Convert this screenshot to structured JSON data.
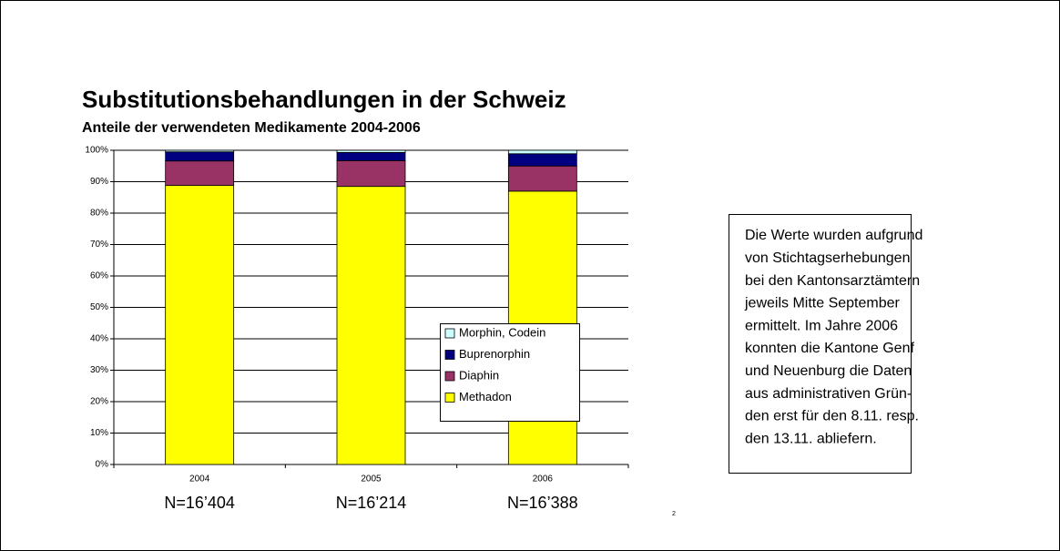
{
  "chart_data": {
    "type": "stacked_bar",
    "title": "Substitutionsbehandlungen in der Schweiz",
    "subtitle": "Anteile der verwendeten Medikamente 2004-2006",
    "categories": [
      "2004",
      "2005",
      "2006"
    ],
    "category_notes": [
      "N=16’404",
      "N=16’214",
      "N=16’388"
    ],
    "series": [
      {
        "name": "Methadon",
        "color": "#ffff00",
        "values": [
          88.8,
          88.5,
          87.0
        ]
      },
      {
        "name": "Diaphin",
        "color": "#993366",
        "values": [
          7.8,
          8.2,
          8.0
        ]
      },
      {
        "name": "Buprenorphin",
        "color": "#000080",
        "values": [
          2.9,
          2.6,
          3.9
        ]
      },
      {
        "name": "Morphin, Codein",
        "color": "#ccffff",
        "values": [
          0.5,
          0.7,
          1.1
        ]
      }
    ],
    "ylim": [
      0,
      100
    ],
    "yticks": [
      {
        "value": 0,
        "label": "0%"
      },
      {
        "value": 10,
        "label": "10%"
      },
      {
        "value": 20,
        "label": "20%"
      },
      {
        "value": 30,
        "label": "30%"
      },
      {
        "value": 40,
        "label": "40%"
      },
      {
        "value": 50,
        "label": "50%"
      },
      {
        "value": 60,
        "label": "60%"
      },
      {
        "value": 70,
        "label": "70%"
      },
      {
        "value": 80,
        "label": "80%"
      },
      {
        "value": 90,
        "label": "90%"
      },
      {
        "value": 100,
        "label": "100%"
      }
    ],
    "grid": true,
    "note": [
      "Die Werte wurden aufgrund",
      "von Stichtagserhebungen",
      "bei den Kantonsarztämtern",
      "jeweils Mitte September",
      "ermittelt. Im Jahre 2006",
      "konnten die Kantone Genf",
      "und Neuenburg die Daten",
      "aus administrativen Grün-",
      "den erst für den 8.11. resp.",
      "den 13.11. abliefern."
    ],
    "page_number": "2"
  }
}
